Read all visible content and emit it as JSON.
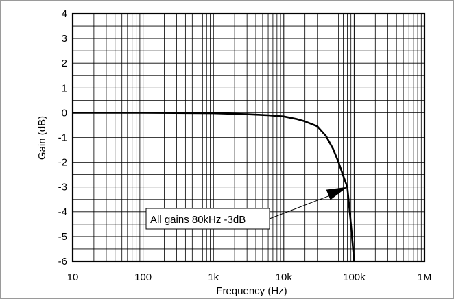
{
  "chart_data": {
    "type": "line",
    "xlabel": "Frequency (Hz)",
    "ylabel": "Gain (dB)",
    "x_scale": "log",
    "xlim": [
      10,
      1000000
    ],
    "ylim": [
      -6,
      4
    ],
    "grid": true,
    "x_tick_labels": [
      "10",
      "100",
      "1k",
      "10k",
      "100k",
      "1M"
    ],
    "x_ticks": [
      10,
      100,
      1000,
      10000,
      100000,
      1000000
    ],
    "y_ticks": [
      4,
      3,
      2,
      1,
      0,
      -1,
      -2,
      -3,
      -4,
      -5,
      -6
    ],
    "y_tick_labels": [
      "4",
      "3",
      "2",
      "1",
      "0",
      "-1",
      "-2",
      "-3",
      "-4",
      "-5",
      "-6"
    ],
    "series": [
      {
        "x": [
          10,
          100,
          1000,
          3000,
          6000,
          10000,
          15000,
          20000,
          30000,
          40000,
          50000,
          60000,
          70000,
          80000,
          90000,
          100000
        ],
        "y": [
          0,
          0,
          -0.02,
          -0.06,
          -0.1,
          -0.15,
          -0.25,
          -0.35,
          -0.55,
          -0.95,
          -1.45,
          -2.0,
          -2.55,
          -3.0,
          -4.5,
          -6.0
        ]
      }
    ],
    "annotations": [
      {
        "text": "All gains 80kHz -3dB",
        "x": 80000,
        "y": -3
      }
    ],
    "colors": {
      "line": "#000000",
      "grid": "#000000"
    }
  }
}
